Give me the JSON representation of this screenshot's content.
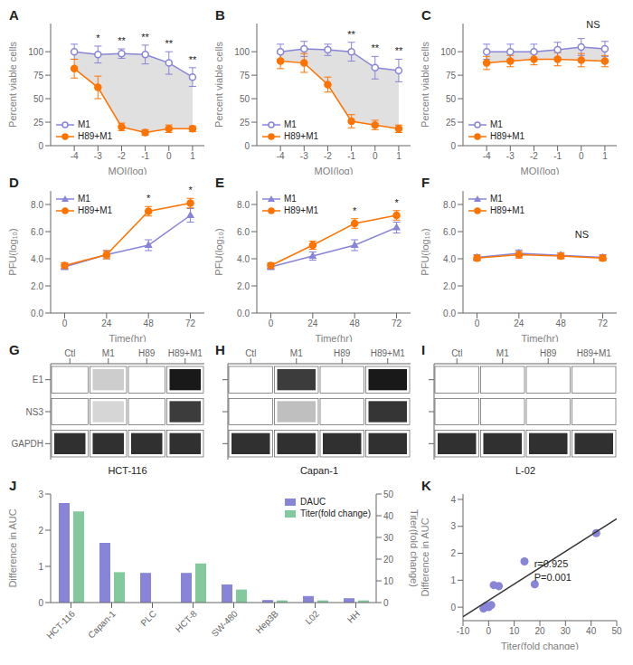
{
  "chart_data": [
    {
      "title": "A",
      "type": "line_band",
      "x": [
        -4,
        -3,
        -2,
        -1,
        0,
        1
      ],
      "xlabel": "MOI(log)",
      "ylabel": "Percent viable cells",
      "xlim": [
        -5,
        1.5
      ],
      "xticks": [
        -4,
        -3,
        -2,
        -1,
        0,
        1
      ],
      "ylim": [
        0,
        130
      ],
      "yticks": [
        0,
        25,
        50,
        75,
        100
      ],
      "legend": "lower left",
      "color": "#cccccc",
      "series": [
        {
          "name": "M1",
          "color": "#8884d8",
          "marker": "open_circle",
          "values": [
            100,
            97,
            98,
            97,
            88,
            73
          ],
          "errors": [
            8,
            9,
            5,
            10,
            12,
            10
          ]
        },
        {
          "name": "H89+M1",
          "color": "#ff7300",
          "marker": "circle",
          "values": [
            82,
            62,
            20,
            14,
            18,
            18
          ],
          "errors": [
            10,
            12,
            4,
            3,
            4,
            3
          ]
        }
      ],
      "annotations": [
        {
          "text": "*",
          "x": -3
        },
        {
          "text": "**",
          "x": -2
        },
        {
          "text": "**",
          "x": -1
        },
        {
          "text": "**",
          "x": 0
        },
        {
          "text": "**",
          "x": 1
        }
      ]
    },
    {
      "title": "B",
      "type": "line_band",
      "x": [
        -4,
        -3,
        -2,
        -1,
        0,
        1
      ],
      "xlabel": "MOI(log)",
      "ylabel": "Percent viable cells",
      "xlim": [
        -5,
        1.5
      ],
      "xticks": [
        -4,
        -3,
        -2,
        -1,
        0,
        1
      ],
      "ylim": [
        0,
        130
      ],
      "yticks": [
        0,
        25,
        50,
        75,
        100
      ],
      "legend": "lower left",
      "color": "#cccccc",
      "series": [
        {
          "name": "M1",
          "color": "#8884d8",
          "marker": "open_circle",
          "values": [
            100,
            103,
            102,
            100,
            83,
            80
          ],
          "errors": [
            8,
            8,
            6,
            10,
            12,
            12
          ]
        },
        {
          "name": "H89+M1",
          "color": "#ff7300",
          "marker": "circle",
          "values": [
            90,
            88,
            65,
            26,
            22,
            18
          ],
          "errors": [
            8,
            10,
            8,
            7,
            5,
            4
          ]
        }
      ],
      "annotations": [
        {
          "text": "**",
          "x": -1
        },
        {
          "text": "**",
          "x": 0
        },
        {
          "text": "**",
          "x": 1
        }
      ]
    },
    {
      "title": "C",
      "type": "line_band",
      "x": [
        -4,
        -3,
        -2,
        -1,
        0,
        1
      ],
      "xlabel": "MOI(log)",
      "ylabel": "Percent viable cells",
      "xlim": [
        -5,
        1.5
      ],
      "xticks": [
        -4,
        -3,
        -2,
        -1,
        0,
        1
      ],
      "ylim": [
        0,
        130
      ],
      "yticks": [
        0,
        25,
        50,
        75,
        100
      ],
      "legend": "lower left",
      "color": "#cccccc",
      "series": [
        {
          "name": "M1",
          "color": "#8884d8",
          "marker": "open_circle",
          "values": [
            100,
            100,
            100,
            102,
            105,
            103
          ],
          "errors": [
            8,
            8,
            8,
            8,
            9,
            8
          ]
        },
        {
          "name": "H89+M1",
          "color": "#ff7300",
          "marker": "circle",
          "values": [
            88,
            90,
            92,
            92,
            91,
            90
          ],
          "errors": [
            7,
            6,
            6,
            7,
            7,
            6
          ]
        }
      ],
      "annotations": [
        {
          "text": "NS",
          "x": 0.5,
          "y": 120
        }
      ]
    },
    {
      "title": "D",
      "type": "line",
      "x": [
        0,
        24,
        48,
        72
      ],
      "xlabel": "Time(hr)",
      "ylabel": "PFU(log₁₀)",
      "xlim": [
        -8,
        80
      ],
      "xticks": [
        0,
        24,
        48,
        72
      ],
      "ylim": [
        0,
        9
      ],
      "yticks": [
        {
          "value": 0,
          "label": "0.0"
        },
        {
          "value": 2,
          "label": "2.0"
        },
        {
          "value": 4,
          "label": "4.0"
        },
        {
          "value": 6,
          "label": "6.0"
        },
        {
          "value": 8,
          "label": "8.0"
        }
      ],
      "legend": "upper left",
      "series": [
        {
          "name": "M1",
          "color": "#8884d8",
          "marker": "triangle",
          "values": [
            3.4,
            4.3,
            5.0,
            7.2
          ],
          "errors": [
            0.2,
            0.3,
            0.4,
            0.5
          ]
        },
        {
          "name": "H89+M1",
          "color": "#ff7300",
          "marker": "circle",
          "values": [
            3.5,
            4.3,
            7.5,
            8.1
          ],
          "errors": [
            0.2,
            0.3,
            0.35,
            0.35
          ]
        }
      ],
      "annotations": [
        {
          "text": "*",
          "x": 48
        },
        {
          "text": "*",
          "x": 72
        }
      ]
    },
    {
      "title": "E",
      "type": "line",
      "x": [
        0,
        24,
        48,
        72
      ],
      "xlabel": "Time(hr)",
      "ylabel": "PFU(log₁₀)",
      "xlim": [
        -8,
        80
      ],
      "xticks": [
        0,
        24,
        48,
        72
      ],
      "ylim": [
        0,
        9
      ],
      "yticks": [
        {
          "value": 0,
          "label": "0.0"
        },
        {
          "value": 2,
          "label": "2.0"
        },
        {
          "value": 4,
          "label": "4.0"
        },
        {
          "value": 6,
          "label": "6.0"
        },
        {
          "value": 8,
          "label": "8.0"
        }
      ],
      "legend": "upper left",
      "series": [
        {
          "name": "M1",
          "color": "#8884d8",
          "marker": "triangle",
          "values": [
            3.4,
            4.2,
            5.0,
            6.3
          ],
          "errors": [
            0.2,
            0.3,
            0.4,
            0.4
          ]
        },
        {
          "name": "H89+M1",
          "color": "#ff7300",
          "marker": "circle",
          "values": [
            3.5,
            5.0,
            6.6,
            7.2
          ],
          "errors": [
            0.2,
            0.3,
            0.35,
            0.35
          ]
        }
      ],
      "annotations": [
        {
          "text": "*",
          "x": 48
        },
        {
          "text": "*",
          "x": 72
        }
      ]
    },
    {
      "title": "F",
      "type": "line",
      "x": [
        0,
        24,
        48,
        72
      ],
      "xlabel": "Time(hr)",
      "ylabel": "PFU(log₁₀)",
      "xlim": [
        -8,
        80
      ],
      "xticks": [
        0,
        24,
        48,
        72
      ],
      "ylim": [
        0,
        9
      ],
      "yticks": [
        {
          "value": 0,
          "label": "0.0"
        },
        {
          "value": 2,
          "label": "2.0"
        },
        {
          "value": 4,
          "label": "4.0"
        },
        {
          "value": 6,
          "label": "6.0"
        },
        {
          "value": 8,
          "label": "8.0"
        }
      ],
      "legend": "upper left",
      "series": [
        {
          "name": "M1",
          "color": "#8884d8",
          "marker": "triangle",
          "values": [
            4.1,
            4.4,
            4.25,
            4.1
          ],
          "errors": [
            0.2,
            0.25,
            0.2,
            0.2
          ]
        },
        {
          "name": "H89+M1",
          "color": "#ff7300",
          "marker": "circle",
          "values": [
            4.05,
            4.3,
            4.2,
            4.05
          ],
          "errors": [
            0.2,
            0.25,
            0.2,
            0.2
          ]
        }
      ],
      "annotations": [
        {
          "text": "NS",
          "x": 60,
          "y": 5.2
        }
      ]
    },
    {
      "title": "G",
      "type": "heatmap",
      "categories": [
        "Ctl",
        "M1",
        "H89",
        "H89+M1"
      ],
      "rows": [
        "E1",
        "NS3",
        "GAPDH"
      ],
      "cells": [
        [
          0.0,
          0.22,
          0.0,
          1.0
        ],
        [
          0.0,
          0.18,
          0.0,
          0.85
        ],
        [
          0.9,
          0.9,
          0.9,
          0.9
        ]
      ],
      "xlabel": "HCT-116"
    },
    {
      "title": "H",
      "type": "heatmap",
      "categories": [
        "Ctl",
        "M1",
        "H89",
        "H89+M1"
      ],
      "rows": [
        null,
        null,
        null
      ],
      "cells": [
        [
          0.0,
          0.85,
          0.0,
          1.0
        ],
        [
          0.0,
          0.28,
          0.0,
          0.88
        ],
        [
          0.9,
          0.9,
          0.9,
          0.9
        ]
      ],
      "xlabel": "Capan-1"
    },
    {
      "title": "I",
      "type": "heatmap",
      "categories": [
        "Ctl",
        "M1",
        "H89",
        "H89+M1"
      ],
      "rows": [
        null,
        null,
        null
      ],
      "cells": [
        [
          0.0,
          0.0,
          0.0,
          0.0
        ],
        [
          0.0,
          0.0,
          0.0,
          0.0
        ],
        [
          0.9,
          0.9,
          0.9,
          0.9
        ]
      ],
      "xlabel": "L-02"
    },
    {
      "title": "J",
      "type": "bar",
      "categories": [
        "HCT-116",
        "Capan-1",
        "PLC",
        "HCT-8",
        "SW-480",
        "Hep3B",
        "L02",
        "HH"
      ],
      "ylabel": "Difference in AUC",
      "y2label": "Titer(fold change)",
      "ylim": [
        0,
        3
      ],
      "yticks": [
        0,
        1,
        2,
        3
      ],
      "y2lim": [
        0,
        50
      ],
      "y2ticks": [
        0,
        10,
        20,
        30,
        40,
        50
      ],
      "legend": "upper right",
      "series": [
        {
          "name": "DAUC",
          "color": "#8884d8",
          "values": [
            2.75,
            1.65,
            0.82,
            0.82,
            0.5,
            0.07,
            0.18,
            0.12
          ]
        },
        {
          "name": "Titer(fold change)",
          "color": "#82ca9d",
          "axis": "y2",
          "values": [
            42,
            14,
            0,
            18,
            6,
            1,
            1,
            1
          ]
        }
      ]
    },
    {
      "title": "K",
      "type": "scatter",
      "xlabel": "Titer(fold change)",
      "ylabel": "Difference in AUC",
      "xlim": [
        -10,
        50
      ],
      "xticks": [
        -10,
        0,
        10,
        20,
        30,
        40,
        50
      ],
      "ylim": [
        -0.5,
        4.2
      ],
      "yticks": [
        0,
        1,
        2,
        3,
        4
      ],
      "series": [
        {
          "type": "scatter",
          "color": "#8884d8",
          "x": [
            -2,
            -1,
            0,
            1,
            2,
            4,
            14,
            18,
            42
          ],
          "values": [
            -0.05,
            0.05,
            0.0,
            0.08,
            0.82,
            0.78,
            1.7,
            0.85,
            2.75
          ]
        },
        {
          "type": "line",
          "color": "#333333",
          "x": [
            -10,
            50
          ],
          "values": [
            -0.355373,
            3.279755
          ]
        }
      ],
      "annotations": [
        {
          "text": "r=0.925",
          "x": 16,
          "y": 1.6
        },
        {
          "text": "P=0.001",
          "x": 16,
          "y": 1.1
        }
      ]
    }
  ]
}
